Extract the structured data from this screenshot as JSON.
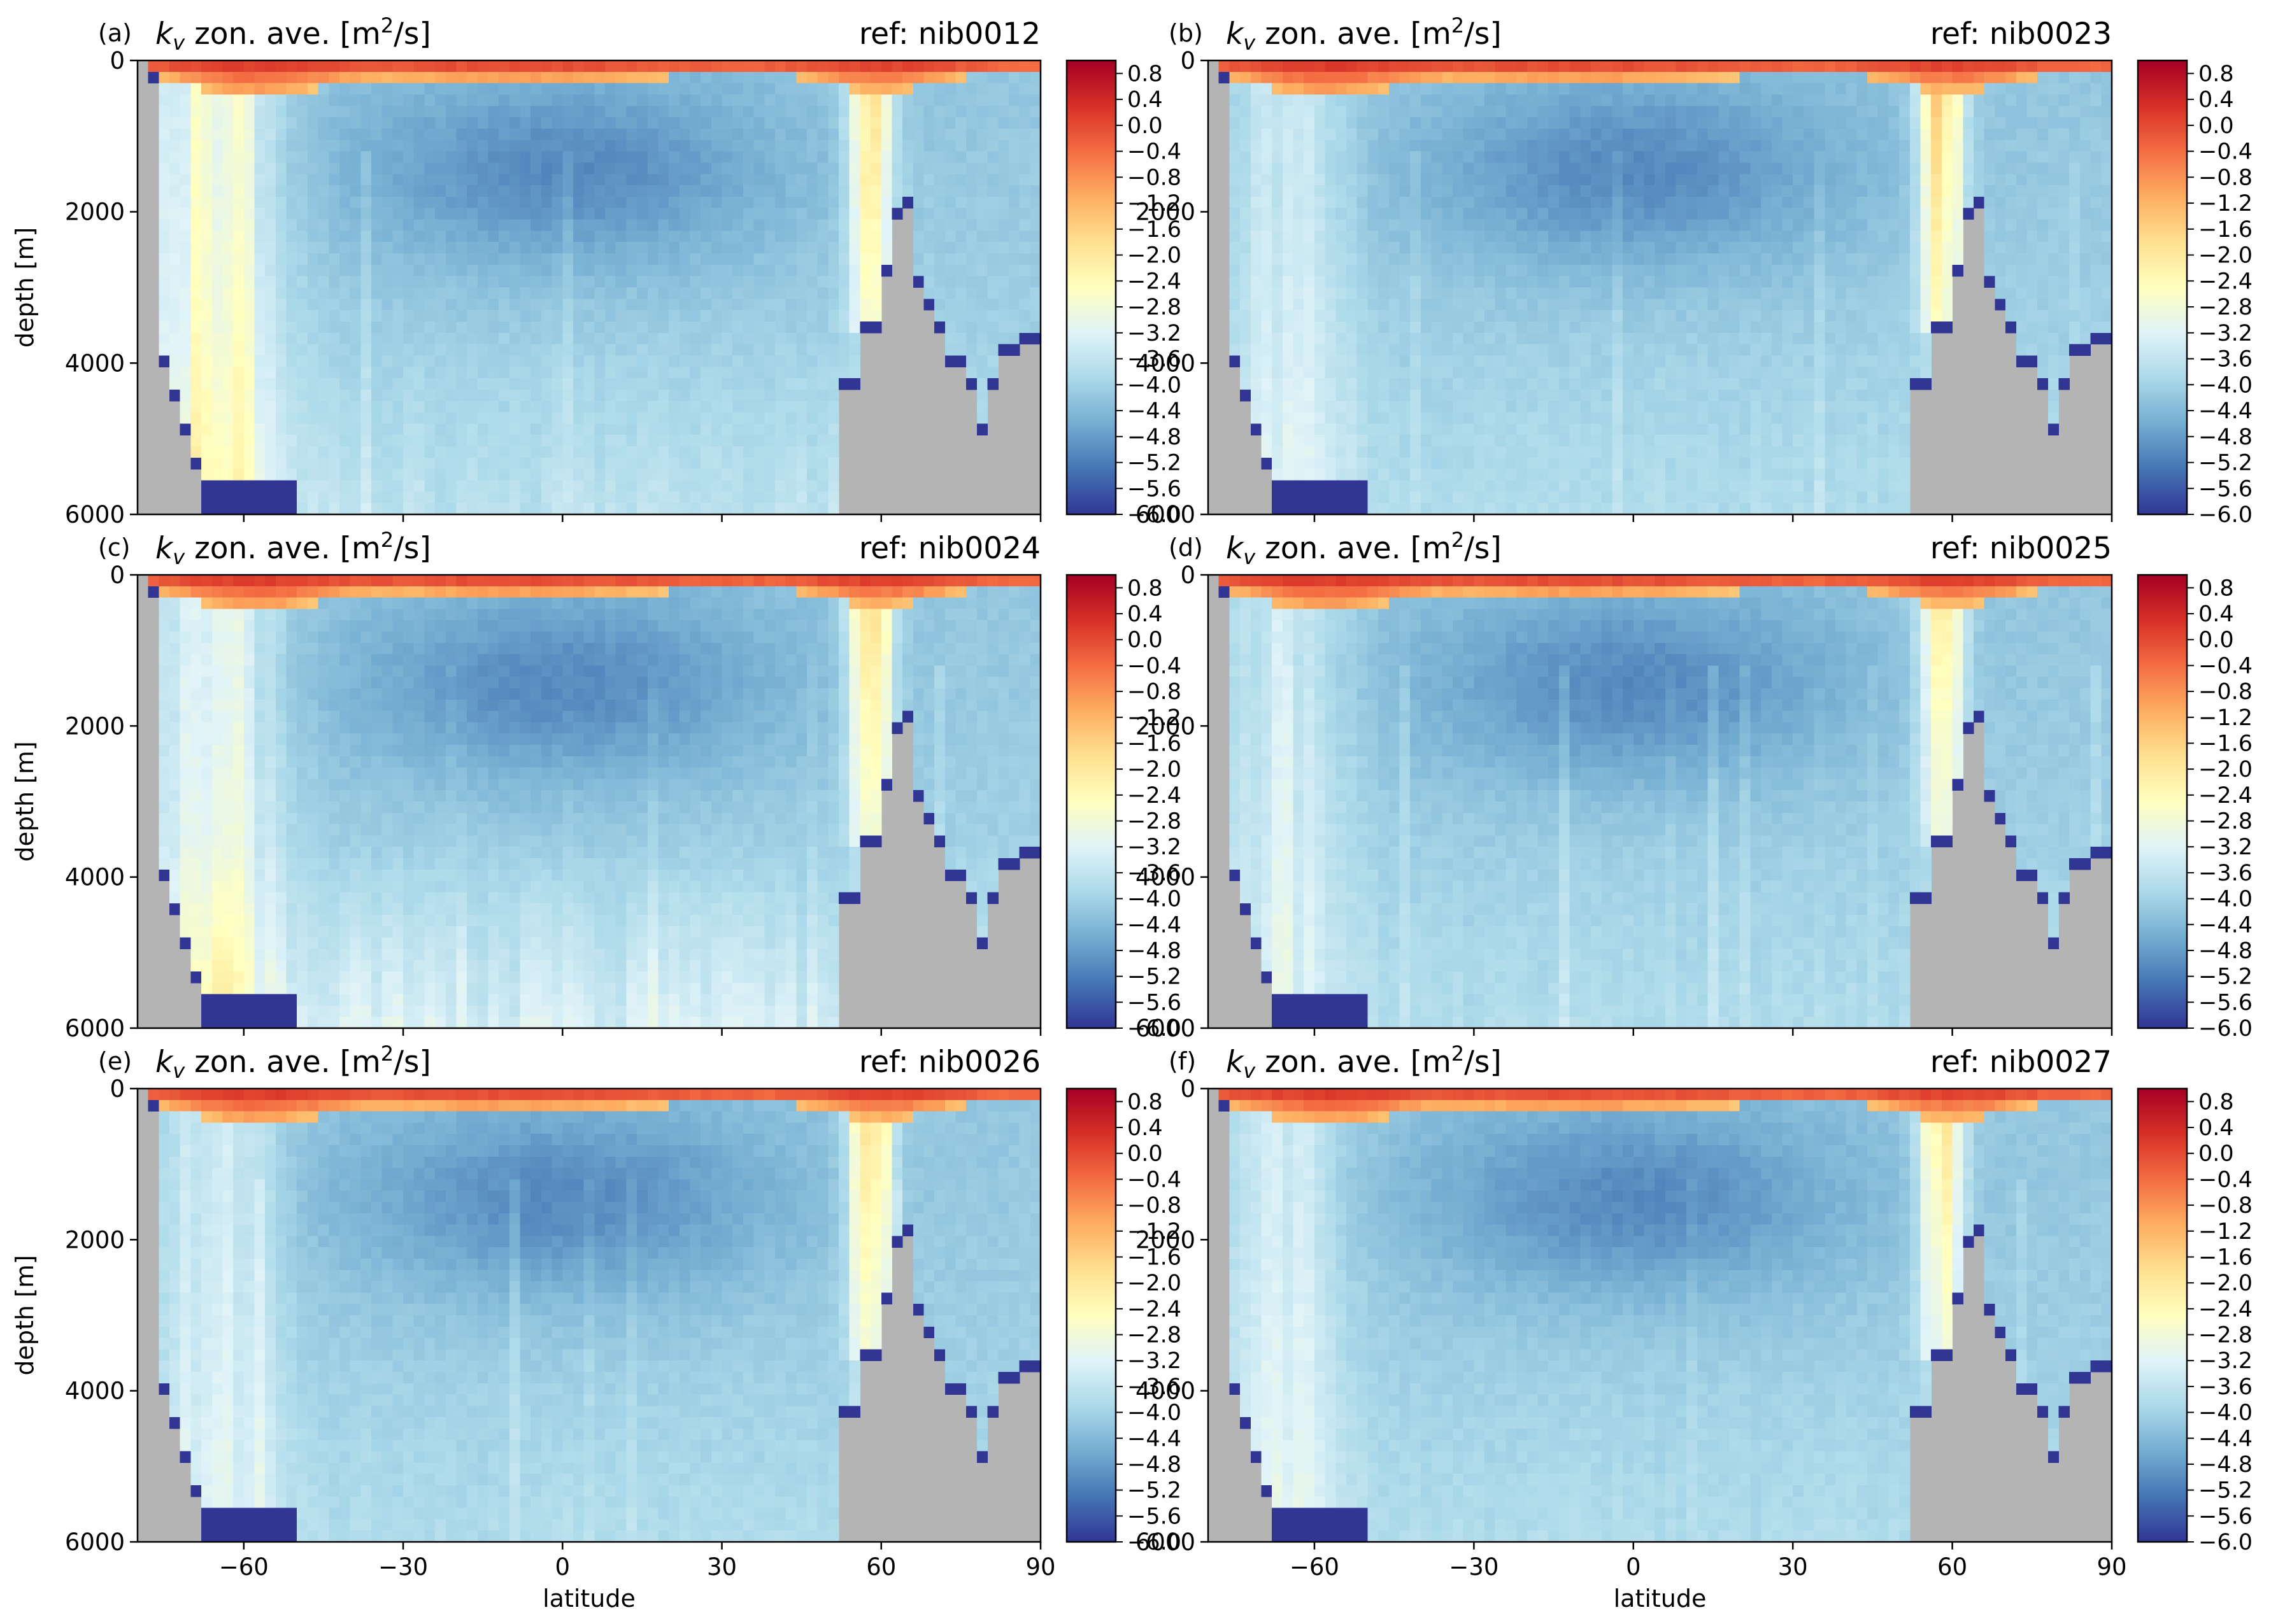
{
  "figure": {
    "colors": {
      "land": "#b4b4b4",
      "floor_band": "#313695",
      "colormap": [
        "#313695",
        "#4575b4",
        "#74add1",
        "#abd9e9",
        "#e0f3f8",
        "#ffffbf",
        "#fee090",
        "#fdae61",
        "#f46d43",
        "#d73027",
        "#a50026"
      ]
    },
    "shared": {
      "xlabel": "latitude",
      "ylabel": "depth [m]",
      "title_left": {
        "k": "k",
        "sub": "v",
        "rest": " zon. ave. [m",
        "sup": "2",
        "tail": "/s]"
      },
      "x_ticks": [
        "−60",
        "−30",
        "0",
        "30",
        "60",
        "90"
      ],
      "y_ticks": [
        "0",
        "2000",
        "4000",
        "6000"
      ],
      "colorbar_ticks": [
        "0.8",
        "0.4",
        "0.0",
        "−0.4",
        "−0.8",
        "−1.2",
        "−1.6",
        "−2.0",
        "−2.4",
        "−2.8",
        "−3.2",
        "−3.6",
        "−4.0",
        "−4.4",
        "−4.8",
        "−5.2",
        "−5.6",
        "−6.0"
      ]
    }
  },
  "chart_data": [
    {
      "type": "heatmap",
      "panel": "(a)",
      "ref": "ref: nib0012",
      "x_range": [
        -80,
        90
      ],
      "y_range": [
        6000,
        0
      ],
      "color_range": [
        -6.0,
        1.0
      ],
      "xlabel": "",
      "ylabel": "depth [m]"
    },
    {
      "type": "heatmap",
      "panel": "(b)",
      "ref": "ref: nib0023",
      "x_range": [
        -80,
        90
      ],
      "y_range": [
        6000,
        0
      ],
      "color_range": [
        -6.0,
        1.0
      ],
      "xlabel": "",
      "ylabel": ""
    },
    {
      "type": "heatmap",
      "panel": "(c)",
      "ref": "ref: nib0024",
      "x_range": [
        -80,
        90
      ],
      "y_range": [
        6000,
        0
      ],
      "color_range": [
        -6.0,
        1.0
      ],
      "xlabel": "",
      "ylabel": "depth [m]"
    },
    {
      "type": "heatmap",
      "panel": "(d)",
      "ref": "ref: nib0025",
      "x_range": [
        -80,
        90
      ],
      "y_range": [
        6000,
        0
      ],
      "color_range": [
        -6.0,
        1.0
      ],
      "xlabel": "",
      "ylabel": ""
    },
    {
      "type": "heatmap",
      "panel": "(e)",
      "ref": "ref: nib0026",
      "x_range": [
        -80,
        90
      ],
      "y_range": [
        6000,
        0
      ],
      "color_range": [
        -6.0,
        1.0
      ],
      "xlabel": "latitude",
      "ylabel": "depth [m]"
    },
    {
      "type": "heatmap",
      "panel": "(f)",
      "ref": "ref: nib0027",
      "x_range": [
        -80,
        90
      ],
      "y_range": [
        6000,
        0
      ],
      "color_range": [
        -6.0,
        1.0
      ],
      "xlabel": "latitude",
      "ylabel": ""
    }
  ]
}
